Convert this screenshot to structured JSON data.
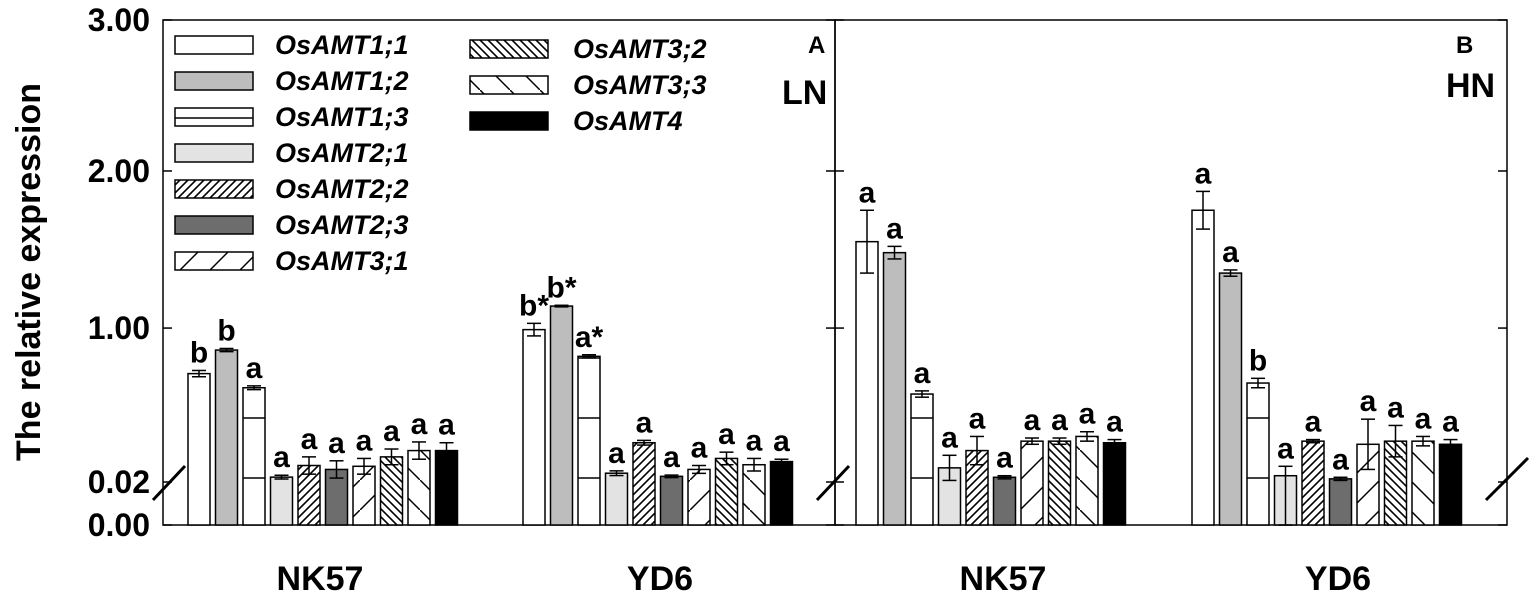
{
  "chart_data": {
    "type": "bar",
    "ylabel": "The relative expression",
    "y_ticks": [
      "3.00",
      "2.00",
      "1.00",
      "0.02",
      "0.00"
    ],
    "y_axis_break": true,
    "legend_position": "top-left",
    "series": [
      {
        "name": "OsAMT1;1",
        "pattern": "white"
      },
      {
        "name": "OsAMT1;2",
        "pattern": "gray"
      },
      {
        "name": "OsAMT1;3",
        "pattern": "white-hline"
      },
      {
        "name": "OsAMT2;1",
        "pattern": "lightgray"
      },
      {
        "name": "OsAMT2;2",
        "pattern": "dense-diagonal"
      },
      {
        "name": "OsAMT2;3",
        "pattern": "darkgray"
      },
      {
        "name": "OsAMT3;1",
        "pattern": "single-diagonal"
      },
      {
        "name": "OsAMT3;2",
        "pattern": "dense-diagonal-back"
      },
      {
        "name": "OsAMT3;3",
        "pattern": "single-diagonal-back"
      },
      {
        "name": "OsAMT4",
        "pattern": "black"
      }
    ],
    "panels": [
      {
        "letter": "A",
        "condition": "LN",
        "categories": [
          "NK57",
          "YD6"
        ],
        "groups": [
          {
            "values": [
              0.71,
              0.86,
              0.62,
              0.051,
              0.125,
              0.1,
              0.12,
              0.18,
              0.22,
              0.22
            ],
            "errors": [
              0.02,
              0.01,
              0.012,
              0.012,
              0.055,
              0.055,
              0.05,
              0.05,
              0.055,
              0.05
            ],
            "labels": [
              "b",
              "b",
              "a",
              "a",
              "a",
              "a",
              "a",
              "a",
              "a",
              "a"
            ]
          },
          {
            "values": [
              0.99,
              1.14,
              0.82,
              0.076,
              0.27,
              0.056,
              0.1,
              0.17,
              0.13,
              0.15
            ],
            "errors": [
              0.04,
              0.005,
              0.01,
              0.015,
              0.015,
              0.008,
              0.025,
              0.04,
              0.04,
              0.015
            ],
            "labels": [
              "b*",
              "b*",
              "a*",
              "a",
              "a",
              "a",
              "a",
              "a",
              "a",
              "a"
            ]
          }
        ]
      },
      {
        "letter": "B",
        "condition": "HN",
        "categories": [
          "NK57",
          "YD6"
        ],
        "groups": [
          {
            "values": [
              1.55,
              1.48,
              0.58,
              0.11,
              0.22,
              0.05,
              0.28,
              0.28,
              0.31,
              0.27
            ],
            "errors": [
              0.2,
              0.04,
              0.02,
              0.08,
              0.09,
              0.01,
              0.02,
              0.02,
              0.03,
              0.02
            ],
            "labels": [
              "a",
              "a",
              "a",
              "a",
              "a",
              "a",
              "a",
              "a",
              "a",
              "a"
            ]
          },
          {
            "values": [
              1.75,
              1.35,
              0.65,
              0.06,
              0.28,
              0.04,
              0.26,
              0.28,
              0.28,
              0.26
            ],
            "errors": [
              0.12,
              0.02,
              0.03,
              0.06,
              0.01,
              0.01,
              0.16,
              0.1,
              0.03,
              0.03
            ],
            "labels": [
              "a",
              "a",
              "b",
              "a",
              "a",
              "a",
              "a",
              "a",
              "a",
              "a"
            ]
          }
        ]
      }
    ]
  }
}
